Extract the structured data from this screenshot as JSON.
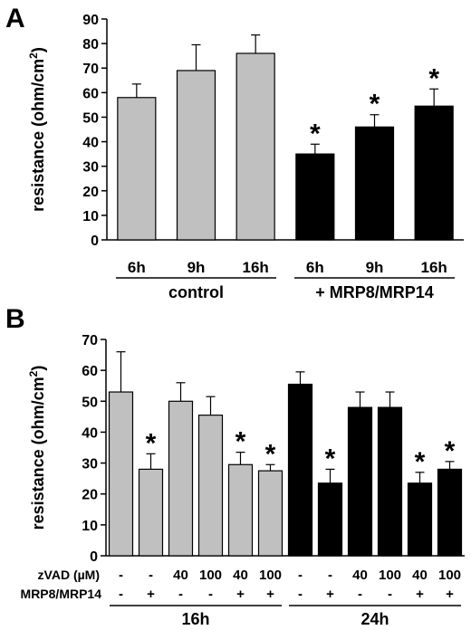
{
  "chart_data": [
    {
      "panel": "A",
      "type": "bar",
      "ylabel": "resistance (ohm/cm",
      "ylabel_sup": "2",
      "ylabel_close": ")",
      "ylim": [
        0,
        90
      ],
      "yticks": [
        0,
        10,
        20,
        30,
        40,
        50,
        60,
        70,
        80,
        90
      ],
      "categories": [
        "6h",
        "9h",
        "16h",
        "6h",
        "9h",
        "16h"
      ],
      "values": [
        58,
        69,
        76,
        35,
        46,
        54.5
      ],
      "errors": [
        5.5,
        10.5,
        7.5,
        4,
        5,
        7
      ],
      "significant": [
        false,
        false,
        false,
        true,
        true,
        true
      ],
      "colors": [
        "#c0c0c0",
        "#c0c0c0",
        "#c0c0c0",
        "#000000",
        "#000000",
        "#000000"
      ],
      "groups": [
        {
          "label": "control",
          "start": 0,
          "end": 2
        },
        {
          "label": "+ MRP8/MRP14",
          "start": 3,
          "end": 5
        }
      ],
      "star": "*"
    },
    {
      "panel": "B",
      "type": "bar",
      "ylabel": "resistance (ohm/cm",
      "ylabel_sup": "2",
      "ylabel_close": ")",
      "ylim": [
        0,
        70
      ],
      "yticks": [
        0,
        10,
        20,
        30,
        40,
        50,
        60,
        70
      ],
      "values": [
        53,
        28,
        50,
        45.5,
        29.5,
        27.5,
        55.5,
        23.5,
        48,
        48,
        23.5,
        28
      ],
      "errors": [
        13,
        5,
        6,
        6,
        4,
        2,
        4,
        4.5,
        5,
        5,
        3.5,
        2.5
      ],
      "significant": [
        false,
        true,
        false,
        false,
        true,
        true,
        false,
        true,
        false,
        false,
        true,
        true
      ],
      "colors": [
        "#c0c0c0",
        "#c0c0c0",
        "#c0c0c0",
        "#c0c0c0",
        "#c0c0c0",
        "#c0c0c0",
        "#000000",
        "#000000",
        "#000000",
        "#000000",
        "#000000",
        "#000000"
      ],
      "rows": [
        {
          "label": "zVAD (µM)",
          "values": [
            "-",
            "-",
            "40",
            "100",
            "40",
            "100",
            "-",
            "-",
            "40",
            "100",
            "40",
            "100"
          ]
        },
        {
          "label": "MRP8/MRP14",
          "values": [
            "-",
            "+",
            "-",
            "-",
            "+",
            "+",
            "-",
            "+",
            "-",
            "-",
            "+",
            "+"
          ]
        }
      ],
      "groups": [
        {
          "label": "16h",
          "start": 0,
          "end": 5
        },
        {
          "label": "24h",
          "start": 6,
          "end": 11
        }
      ],
      "star": "*"
    }
  ]
}
